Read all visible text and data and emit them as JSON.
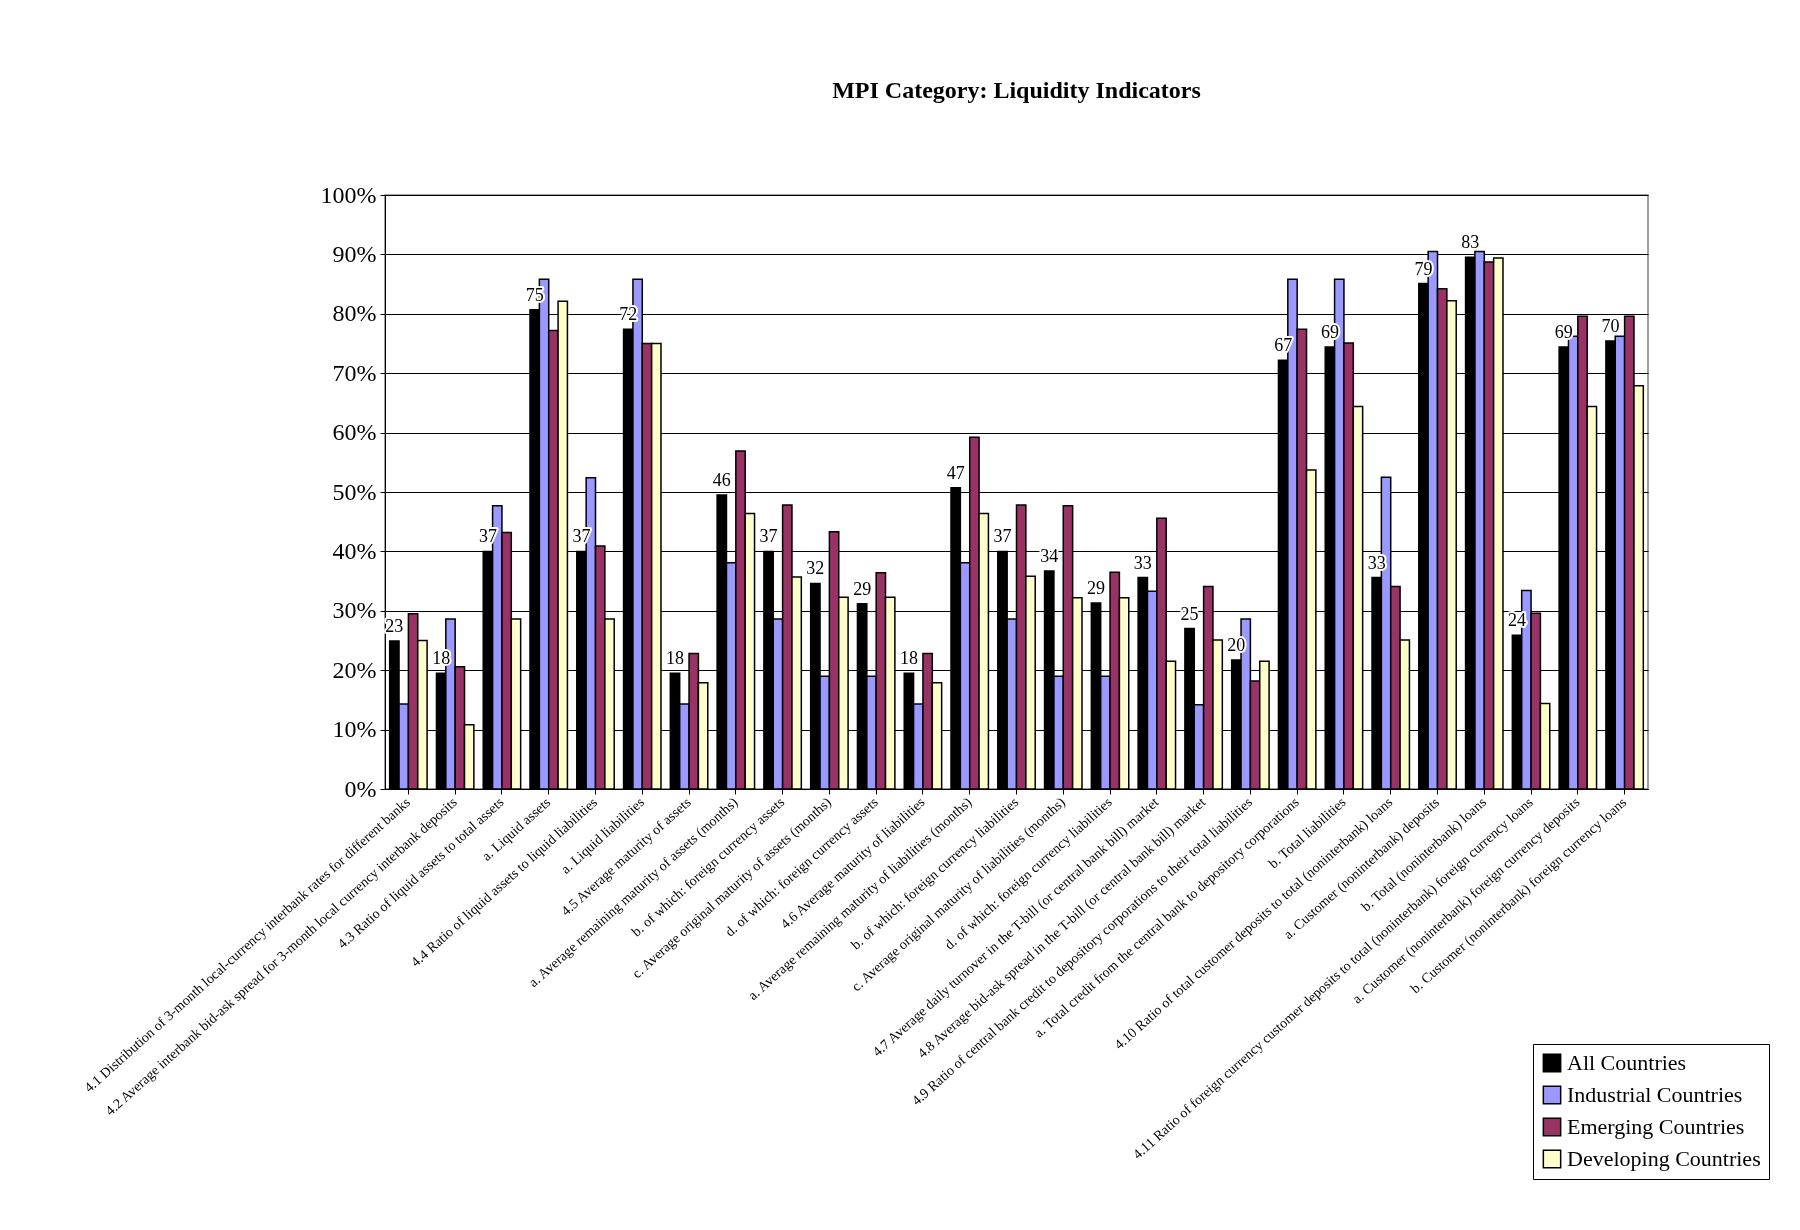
{
  "chart_data": {
    "type": "bar",
    "title": "MPI Category: Liquidity Indicators",
    "categories": [
      "4.1 Distribution of 3-month local-currency interbank rates for different banks",
      "4.2 Average interbank bid-ask spread for 3-month local currency interbank deposits",
      "4.3 Ratio of liquid assets to total assets",
      "a. Liquid assets",
      "4.4 Ratio of liquid assets to liquid liabilities",
      "a. Liquid liabilities",
      "4.5 Average maturity of assets",
      "a. Average remaining maturity of assets (months)",
      "b.      of which: foreign currency assets",
      "c. Average original maturity of assets (months)",
      "d.      of which: foreign currency assets",
      "4.6 Average maturity of liabilities",
      "a. Average remaining maturity of liabilities (months)",
      "b.      of which: foreign currency liabilities",
      "c. Average original maturity of liabilities (months)",
      "d.      of which: foreign currency liabilities",
      "4.7 Average daily turnover in the T-bill (or central bank bill) market",
      "4.8 Average bid-ask spread in the T-bill (or central bank bill) market",
      "4.9 Ratio of central bank credit to depository corporations to their total liabilities",
      "a.  Total credit from the central bank to depository corporations",
      "b. Total liabilities",
      "4.10 Ratio of total customer deposits to total (noninterbank) loans",
      "a. Customer (noninterbank) deposits",
      "b. Total (noninterbank) loans",
      "4.11 Ratio of foreign currency customer deposits to total (noninterbank) foreign currency loans",
      "a. Customer (noninterbank) foreign currency deposits",
      "b. Customer (noninterbank) foreign currency loans"
    ],
    "series": [
      {
        "name": "All Countries",
        "color": "#000000",
        "values": [
          24.9,
          19.5,
          40,
          80.7,
          40,
          77.4,
          19.5,
          49.5,
          40,
          34.6,
          31.2,
          19.5,
          50.7,
          40,
          36.7,
          31.3,
          35.6,
          27,
          21.7,
          72.2,
          74.4,
          35.6,
          85.1,
          89.5,
          25.9,
          74.4,
          75.4
        ]
      },
      {
        "name": "Industrial Countries",
        "color": "#9999ff",
        "values": [
          14.3,
          28.6,
          47.7,
          85.8,
          52.4,
          85.8,
          14.3,
          38.1,
          28.6,
          19,
          19,
          14.3,
          38.1,
          28.6,
          19,
          19,
          33.3,
          14.2,
          28.6,
          85.8,
          85.8,
          52.5,
          90.5,
          90.5,
          33.4,
          76.2,
          76.2
        ]
      },
      {
        "name": "Emerging Countries",
        "color": "#993366",
        "values": [
          29.5,
          20.6,
          43.2,
          77.2,
          40.9,
          75,
          22.8,
          56.9,
          47.8,
          43.3,
          36.4,
          22.8,
          59.2,
          47.8,
          47.7,
          36.5,
          45.6,
          34.1,
          18.2,
          77.4,
          75.1,
          34.1,
          84.2,
          88.7,
          29.6,
          79.6,
          79.6
        ]
      },
      {
        "name": "Developing Countries",
        "color": "#ffffcc",
        "values": [
          25,
          10.8,
          28.6,
          82.1,
          28.6,
          75,
          17.9,
          46.4,
          35.7,
          32.3,
          32.3,
          17.9,
          46.4,
          35.8,
          32.2,
          32.2,
          21.5,
          25.1,
          21.5,
          53.7,
          64.4,
          25.1,
          82.2,
          89.4,
          14.4,
          64.4,
          67.9
        ]
      }
    ],
    "annotations": [
      {
        "text": "23",
        "x": "4.1 Distribution of 3-month local-currency interbank rates for different banks",
        "y": 24.9
      },
      {
        "text": "18",
        "x": "4.2 Average interbank bid-ask spread for 3-month local currency interbank deposits",
        "y": 19.5
      },
      {
        "text": "37",
        "x": "4.3 Ratio of liquid assets to total assets",
        "y": 40
      },
      {
        "text": "75",
        "x": "a. Liquid assets",
        "y": 80.7
      },
      {
        "text": "37",
        "x": "4.4 Ratio of liquid assets to liquid liabilities",
        "y": 40
      },
      {
        "text": "72",
        "x": "a. Liquid liabilities",
        "y": 77.4
      },
      {
        "text": "18",
        "x": "4.5 Average maturity of assets",
        "y": 19.5
      },
      {
        "text": "46",
        "x": "a. Average remaining maturity of assets (months)",
        "y": 49.5
      },
      {
        "text": "37",
        "x": "b.      of which: foreign currency assets",
        "y": 40
      },
      {
        "text": "32",
        "x": "c. Average original maturity of assets (months)",
        "y": 34.6
      },
      {
        "text": "29",
        "x": "d.      of which: foreign currency assets",
        "y": 31.2
      },
      {
        "text": "18",
        "x": "4.6 Average maturity of liabilities",
        "y": 19.5
      },
      {
        "text": "47",
        "x": "a. Average remaining maturity of liabilities (months)",
        "y": 50.7
      },
      {
        "text": "37",
        "x": "b.      of which: foreign currency liabilities",
        "y": 40
      },
      {
        "text": "34",
        "x": "c. Average original maturity of liabilities (months)",
        "y": 36.7
      },
      {
        "text": "29",
        "x": "d.      of which: foreign currency liabilities",
        "y": 31.3
      },
      {
        "text": "33",
        "x": "4.7 Average daily turnover in the T-bill (or central bank bill) market",
        "y": 35.6
      },
      {
        "text": "25",
        "x": "4.8 Average bid-ask spread in the T-bill (or central bank bill) market",
        "y": 27
      },
      {
        "text": "20",
        "x": "4.9 Ratio of central bank credit to depository corporations to their total liabilities",
        "y": 21.7
      },
      {
        "text": "67",
        "x": "a.  Total credit from the central bank to depository corporations",
        "y": 72.2
      },
      {
        "text": "69",
        "x": "b. Total liabilities",
        "y": 74.4
      },
      {
        "text": "33",
        "x": "4.10 Ratio of total customer deposits to total (noninterbank) loans",
        "y": 35.6
      },
      {
        "text": "79",
        "x": "a. Customer (noninterbank) deposits",
        "y": 85.1
      },
      {
        "text": "83",
        "x": "b. Total (noninterbank) loans",
        "y": 89.5
      },
      {
        "text": "24",
        "x": "4.11 Ratio of foreign currency customer deposits to total (noninterbank) foreign currency loans",
        "y": 25.9
      },
      {
        "text": "69",
        "x": "a. Customer (noninterbank) foreign currency deposits",
        "y": 74.4
      },
      {
        "text": "70",
        "x": "b. Customer (noninterbank) foreign currency loans",
        "y": 75.4
      }
    ],
    "ylim": [
      0,
      100
    ],
    "yticks": [
      {
        "value": 0,
        "label": "0%"
      },
      {
        "value": 10,
        "label": "10%"
      },
      {
        "value": 20,
        "label": "20%"
      },
      {
        "value": 30,
        "label": "30%"
      },
      {
        "value": 40,
        "label": "40%"
      },
      {
        "value": 50,
        "label": "50%"
      },
      {
        "value": 60,
        "label": "60%"
      },
      {
        "value": 70,
        "label": "70%"
      },
      {
        "value": 80,
        "label": "80%"
      },
      {
        "value": 90,
        "label": "90%"
      },
      {
        "value": 100,
        "label": "100%"
      }
    ],
    "grid": "y",
    "legend": "bottom right"
  }
}
